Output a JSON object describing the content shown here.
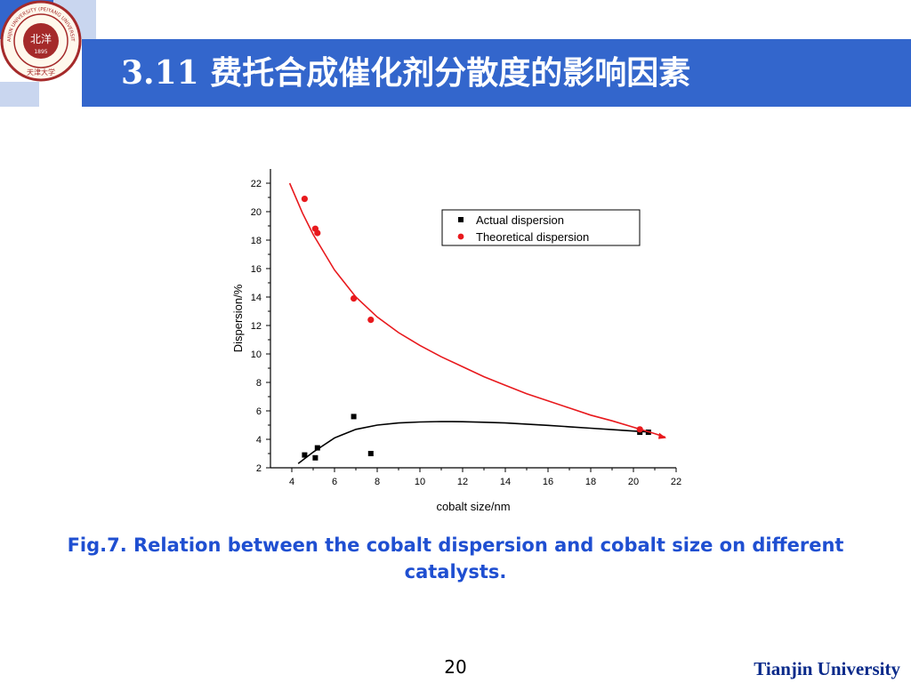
{
  "slide": {
    "title": "3.11 费托合成催化剂分散度的影响因素",
    "caption": "Fig.7. Relation between the cobalt dispersion and cobalt size on different catalysts.",
    "page_number": "20",
    "institution": "Tianjin University",
    "accent_color": "#3366cc",
    "light_accent_color": "#c9d6ef"
  },
  "logo": {
    "ring_text": "TIANJIN UNIVERSITY (PEIYANG UNIVERSITY)",
    "center_text": "北洋",
    "year": "1895",
    "bottom_text": "天津大学",
    "color": "#a52a2a"
  },
  "chart_data": {
    "type": "scatter",
    "xlabel": "cobalt  size/nm",
    "ylabel": "Dispersion/%",
    "xlim": [
      3,
      22
    ],
    "ylim": [
      2,
      23
    ],
    "xticks": [
      4,
      6,
      8,
      10,
      12,
      14,
      16,
      18,
      20,
      22
    ],
    "yticks": [
      2,
      4,
      6,
      8,
      10,
      12,
      14,
      16,
      18,
      20,
      22
    ],
    "legend_position": "top-right",
    "series": [
      {
        "name": "Actual dispersion",
        "marker": "square",
        "color": "#000000",
        "points": [
          [
            4.6,
            2.9
          ],
          [
            5.1,
            2.7
          ],
          [
            5.2,
            3.4
          ],
          [
            6.9,
            5.6
          ],
          [
            7.7,
            3.0
          ],
          [
            20.3,
            4.5
          ],
          [
            20.7,
            4.5
          ]
        ],
        "fit": [
          [
            4.3,
            2.3
          ],
          [
            5.0,
            3.1
          ],
          [
            6.0,
            4.1
          ],
          [
            7.0,
            4.7
          ],
          [
            8.0,
            5.0
          ],
          [
            9.0,
            5.15
          ],
          [
            10.0,
            5.22
          ],
          [
            11.0,
            5.25
          ],
          [
            12.0,
            5.24
          ],
          [
            13.0,
            5.2
          ],
          [
            14.0,
            5.15
          ],
          [
            15.0,
            5.07
          ],
          [
            16.0,
            4.98
          ],
          [
            17.0,
            4.88
          ],
          [
            18.0,
            4.78
          ],
          [
            19.0,
            4.68
          ],
          [
            20.0,
            4.58
          ],
          [
            20.7,
            4.52
          ]
        ]
      },
      {
        "name": "Theoretical  dispersion",
        "marker": "circle",
        "color": "#e8191d",
        "points": [
          [
            4.6,
            20.9
          ],
          [
            5.1,
            18.8
          ],
          [
            5.2,
            18.5
          ],
          [
            6.9,
            13.9
          ],
          [
            7.7,
            12.4
          ],
          [
            20.3,
            4.7
          ]
        ],
        "fit": [
          [
            3.9,
            22.0
          ],
          [
            4.5,
            19.9
          ],
          [
            5.0,
            18.4
          ],
          [
            6.0,
            15.9
          ],
          [
            7.0,
            14.0
          ],
          [
            8.0,
            12.6
          ],
          [
            9.0,
            11.5
          ],
          [
            10.0,
            10.6
          ],
          [
            11.0,
            9.8
          ],
          [
            12.0,
            9.1
          ],
          [
            13.0,
            8.4
          ],
          [
            14.0,
            7.8
          ],
          [
            15.0,
            7.2
          ],
          [
            16.0,
            6.7
          ],
          [
            17.0,
            6.2
          ],
          [
            18.0,
            5.7
          ],
          [
            19.0,
            5.3
          ],
          [
            20.0,
            4.85
          ],
          [
            21.0,
            4.4
          ],
          [
            21.5,
            4.15
          ]
        ]
      }
    ]
  }
}
